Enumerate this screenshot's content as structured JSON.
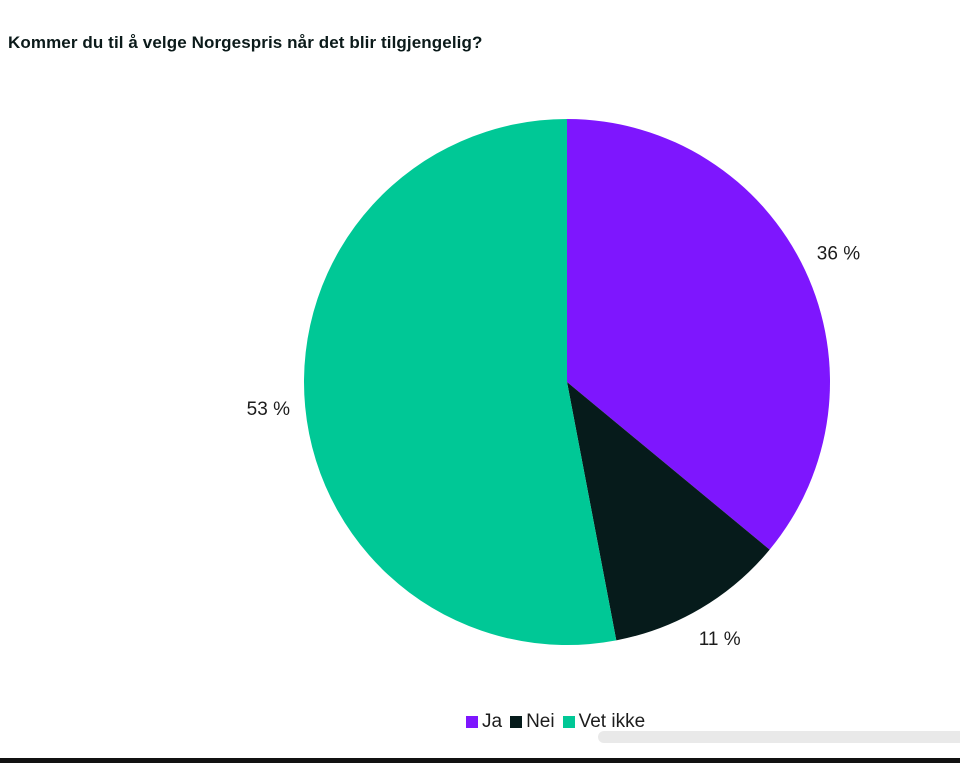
{
  "chart_data": {
    "type": "pie",
    "title": "Kommer du til å velge Norgespris når det blir tilgjengelig?",
    "categories": [
      "Ja",
      "Nei",
      "Vet ikke"
    ],
    "values": [
      36,
      11,
      53
    ],
    "labels": [
      "36 %",
      "11 %",
      "53 %"
    ],
    "colors": [
      "#7e16fe",
      "#061b1b",
      "#00c896"
    ],
    "start_angle": "top",
    "direction": "clockwise",
    "legend": {
      "position": "bottom",
      "entries": [
        "Ja",
        "Nei",
        "Vet ikke"
      ]
    }
  }
}
